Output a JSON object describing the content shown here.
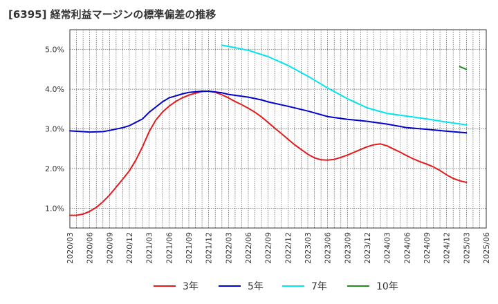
{
  "chart_data": {
    "type": "line",
    "title": "[6395]  経常利益マージンの標準偏差の推移",
    "xlabel": "",
    "ylabel": "",
    "ylim": [
      0.5,
      5.5
    ],
    "yticks": [
      "1.0%",
      "2.0%",
      "3.0%",
      "4.0%",
      "5.0%"
    ],
    "ytick_values": [
      1.0,
      2.0,
      3.0,
      4.0,
      5.0
    ],
    "x_categories": [
      "2020/03",
      "2020/06",
      "2020/09",
      "2020/12",
      "2021/03",
      "2021/06",
      "2021/09",
      "2021/12",
      "2022/03",
      "2022/06",
      "2022/09",
      "2022/12",
      "2023/03",
      "2023/06",
      "2023/09",
      "2023/12",
      "2024/03",
      "2024/06",
      "2024/09",
      "2024/12",
      "2025/03",
      "2025/06"
    ],
    "grid": true,
    "legend_position": "bottom",
    "series": [
      {
        "name": "3年",
        "color": "#e41a1c",
        "points": [
          [
            "2020/03",
            0.82
          ],
          [
            "2020/04",
            0.82
          ],
          [
            "2020/05",
            0.85
          ],
          [
            "2020/06",
            0.92
          ],
          [
            "2020/07",
            1.02
          ],
          [
            "2020/08",
            1.16
          ],
          [
            "2020/09",
            1.33
          ],
          [
            "2020/10",
            1.53
          ],
          [
            "2020/11",
            1.73
          ],
          [
            "2020/12",
            1.94
          ],
          [
            "2021/01",
            2.22
          ],
          [
            "2021/02",
            2.55
          ],
          [
            "2021/03",
            2.93
          ],
          [
            "2021/04",
            3.22
          ],
          [
            "2021/05",
            3.42
          ],
          [
            "2021/06",
            3.57
          ],
          [
            "2021/07",
            3.69
          ],
          [
            "2021/08",
            3.78
          ],
          [
            "2021/09",
            3.85
          ],
          [
            "2021/10",
            3.9
          ],
          [
            "2021/11",
            3.94
          ],
          [
            "2021/12",
            3.95
          ],
          [
            "2022/01",
            3.92
          ],
          [
            "2022/02",
            3.86
          ],
          [
            "2022/03",
            3.78
          ],
          [
            "2022/04",
            3.69
          ],
          [
            "2022/05",
            3.61
          ],
          [
            "2022/06",
            3.52
          ],
          [
            "2022/07",
            3.42
          ],
          [
            "2022/08",
            3.3
          ],
          [
            "2022/09",
            3.16
          ],
          [
            "2022/10",
            3.02
          ],
          [
            "2022/11",
            2.88
          ],
          [
            "2022/12",
            2.74
          ],
          [
            "2023/01",
            2.6
          ],
          [
            "2023/02",
            2.48
          ],
          [
            "2023/03",
            2.36
          ],
          [
            "2023/04",
            2.27
          ],
          [
            "2023/05",
            2.22
          ],
          [
            "2023/06",
            2.21
          ],
          [
            "2023/07",
            2.23
          ],
          [
            "2023/08",
            2.28
          ],
          [
            "2023/09",
            2.34
          ],
          [
            "2023/10",
            2.41
          ],
          [
            "2023/11",
            2.48
          ],
          [
            "2023/12",
            2.55
          ],
          [
            "2024/01",
            2.6
          ],
          [
            "2024/02",
            2.62
          ],
          [
            "2024/03",
            2.57
          ],
          [
            "2024/04",
            2.49
          ],
          [
            "2024/05",
            2.41
          ],
          [
            "2024/06",
            2.32
          ],
          [
            "2024/07",
            2.24
          ],
          [
            "2024/08",
            2.17
          ],
          [
            "2024/09",
            2.11
          ],
          [
            "2024/10",
            2.04
          ],
          [
            "2024/11",
            1.95
          ],
          [
            "2024/12",
            1.84
          ],
          [
            "2025/01",
            1.75
          ],
          [
            "2025/02",
            1.69
          ],
          [
            "2025/03",
            1.65
          ]
        ]
      },
      {
        "name": "5年",
        "color": "#0000cc",
        "points": [
          [
            "2020/03",
            2.95
          ],
          [
            "2020/06",
            2.92
          ],
          [
            "2020/08",
            2.93
          ],
          [
            "2020/09",
            2.96
          ],
          [
            "2020/11",
            3.03
          ],
          [
            "2020/12",
            3.08
          ],
          [
            "2021/02",
            3.25
          ],
          [
            "2021/03",
            3.42
          ],
          [
            "2021/05",
            3.68
          ],
          [
            "2021/06",
            3.78
          ],
          [
            "2021/08",
            3.88
          ],
          [
            "2021/09",
            3.92
          ],
          [
            "2021/11",
            3.95
          ],
          [
            "2021/12",
            3.95
          ],
          [
            "2022/02",
            3.91
          ],
          [
            "2022/03",
            3.87
          ],
          [
            "2022/06",
            3.8
          ],
          [
            "2022/08",
            3.73
          ],
          [
            "2022/09",
            3.68
          ],
          [
            "2022/12",
            3.57
          ],
          [
            "2023/03",
            3.45
          ],
          [
            "2023/06",
            3.31
          ],
          [
            "2023/09",
            3.24
          ],
          [
            "2023/12",
            3.19
          ],
          [
            "2024/03",
            3.12
          ],
          [
            "2024/06",
            3.03
          ],
          [
            "2024/09",
            2.99
          ],
          [
            "2024/12",
            2.94
          ],
          [
            "2025/03",
            2.9
          ]
        ]
      },
      {
        "name": "7年",
        "color": "#00e5ee",
        "points": [
          [
            "2022/02",
            5.11
          ],
          [
            "2022/03",
            5.08
          ],
          [
            "2022/06",
            4.98
          ],
          [
            "2022/09",
            4.82
          ],
          [
            "2022/12",
            4.6
          ],
          [
            "2023/03",
            4.33
          ],
          [
            "2023/06",
            4.03
          ],
          [
            "2023/09",
            3.76
          ],
          [
            "2023/12",
            3.53
          ],
          [
            "2024/03",
            3.39
          ],
          [
            "2024/06",
            3.32
          ],
          [
            "2024/09",
            3.25
          ],
          [
            "2024/12",
            3.17
          ],
          [
            "2025/03",
            3.1
          ]
        ]
      },
      {
        "name": "10年",
        "color": "#228b22",
        "points": [
          [
            "2025/02",
            4.57
          ],
          [
            "2025/03",
            4.5
          ]
        ]
      }
    ]
  }
}
